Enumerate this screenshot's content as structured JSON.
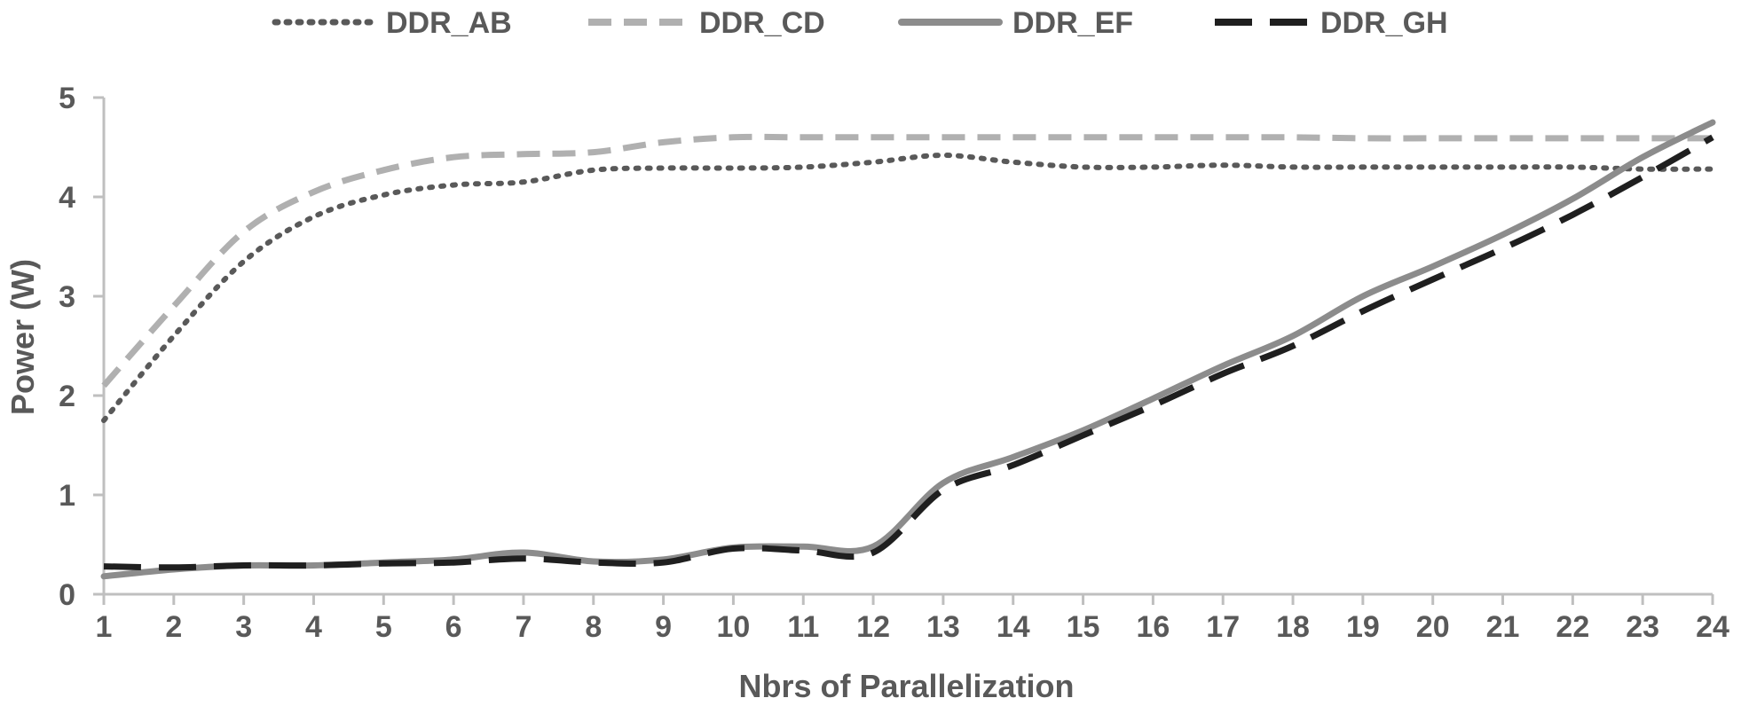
{
  "chart_data": {
    "type": "line",
    "title": "",
    "xlabel": "Nbrs of Parallelization",
    "ylabel": "Power (W)",
    "x": [
      1,
      2,
      3,
      4,
      5,
      6,
      7,
      8,
      9,
      10,
      11,
      12,
      13,
      14,
      15,
      16,
      17,
      18,
      19,
      20,
      21,
      22,
      23,
      24
    ],
    "xticks": [
      "1",
      "2",
      "3",
      "4",
      "5",
      "6",
      "7",
      "8",
      "9",
      "10",
      "11",
      "12",
      "13",
      "14",
      "15",
      "16",
      "17",
      "18",
      "19",
      "20",
      "21",
      "22",
      "23",
      "24"
    ],
    "yticks": [
      "0",
      "1",
      "2",
      "3",
      "4",
      "5"
    ],
    "ylim": [
      0,
      5
    ],
    "xlim": [
      1,
      24
    ],
    "grid": false,
    "legend_position": "top-center",
    "series": [
      {
        "name": "DDR_AB",
        "style": "dotted",
        "color": "#595959",
        "values": [
          1.75,
          2.6,
          3.35,
          3.8,
          4.02,
          4.12,
          4.15,
          4.27,
          4.29,
          4.29,
          4.3,
          4.35,
          4.42,
          4.35,
          4.3,
          4.3,
          4.32,
          4.3,
          4.3,
          4.3,
          4.3,
          4.3,
          4.28,
          4.28
        ]
      },
      {
        "name": "DDR_CD",
        "style": "dashed",
        "color": "#b0b0b0",
        "values": [
          2.1,
          2.9,
          3.65,
          4.05,
          4.27,
          4.4,
          4.43,
          4.45,
          4.55,
          4.6,
          4.6,
          4.6,
          4.6,
          4.6,
          4.6,
          4.6,
          4.6,
          4.6,
          4.59,
          4.59,
          4.59,
          4.59,
          4.59,
          4.59
        ]
      },
      {
        "name": "DDR_EF",
        "style": "solid",
        "color": "#8c8c8c",
        "values": [
          0.18,
          0.25,
          0.29,
          0.29,
          0.32,
          0.35,
          0.42,
          0.33,
          0.35,
          0.47,
          0.48,
          0.48,
          1.12,
          1.38,
          1.65,
          1.97,
          2.3,
          2.6,
          3.0,
          3.3,
          3.62,
          3.98,
          4.4,
          4.75
        ]
      },
      {
        "name": "DDR_GH",
        "style": "long-dashed",
        "color": "#1f1f1f",
        "values": [
          0.28,
          0.27,
          0.29,
          0.29,
          0.31,
          0.32,
          0.36,
          0.32,
          0.32,
          0.46,
          0.44,
          0.42,
          1.05,
          1.3,
          1.6,
          1.9,
          2.22,
          2.5,
          2.85,
          3.17,
          3.48,
          3.82,
          4.2,
          4.6
        ]
      }
    ]
  }
}
